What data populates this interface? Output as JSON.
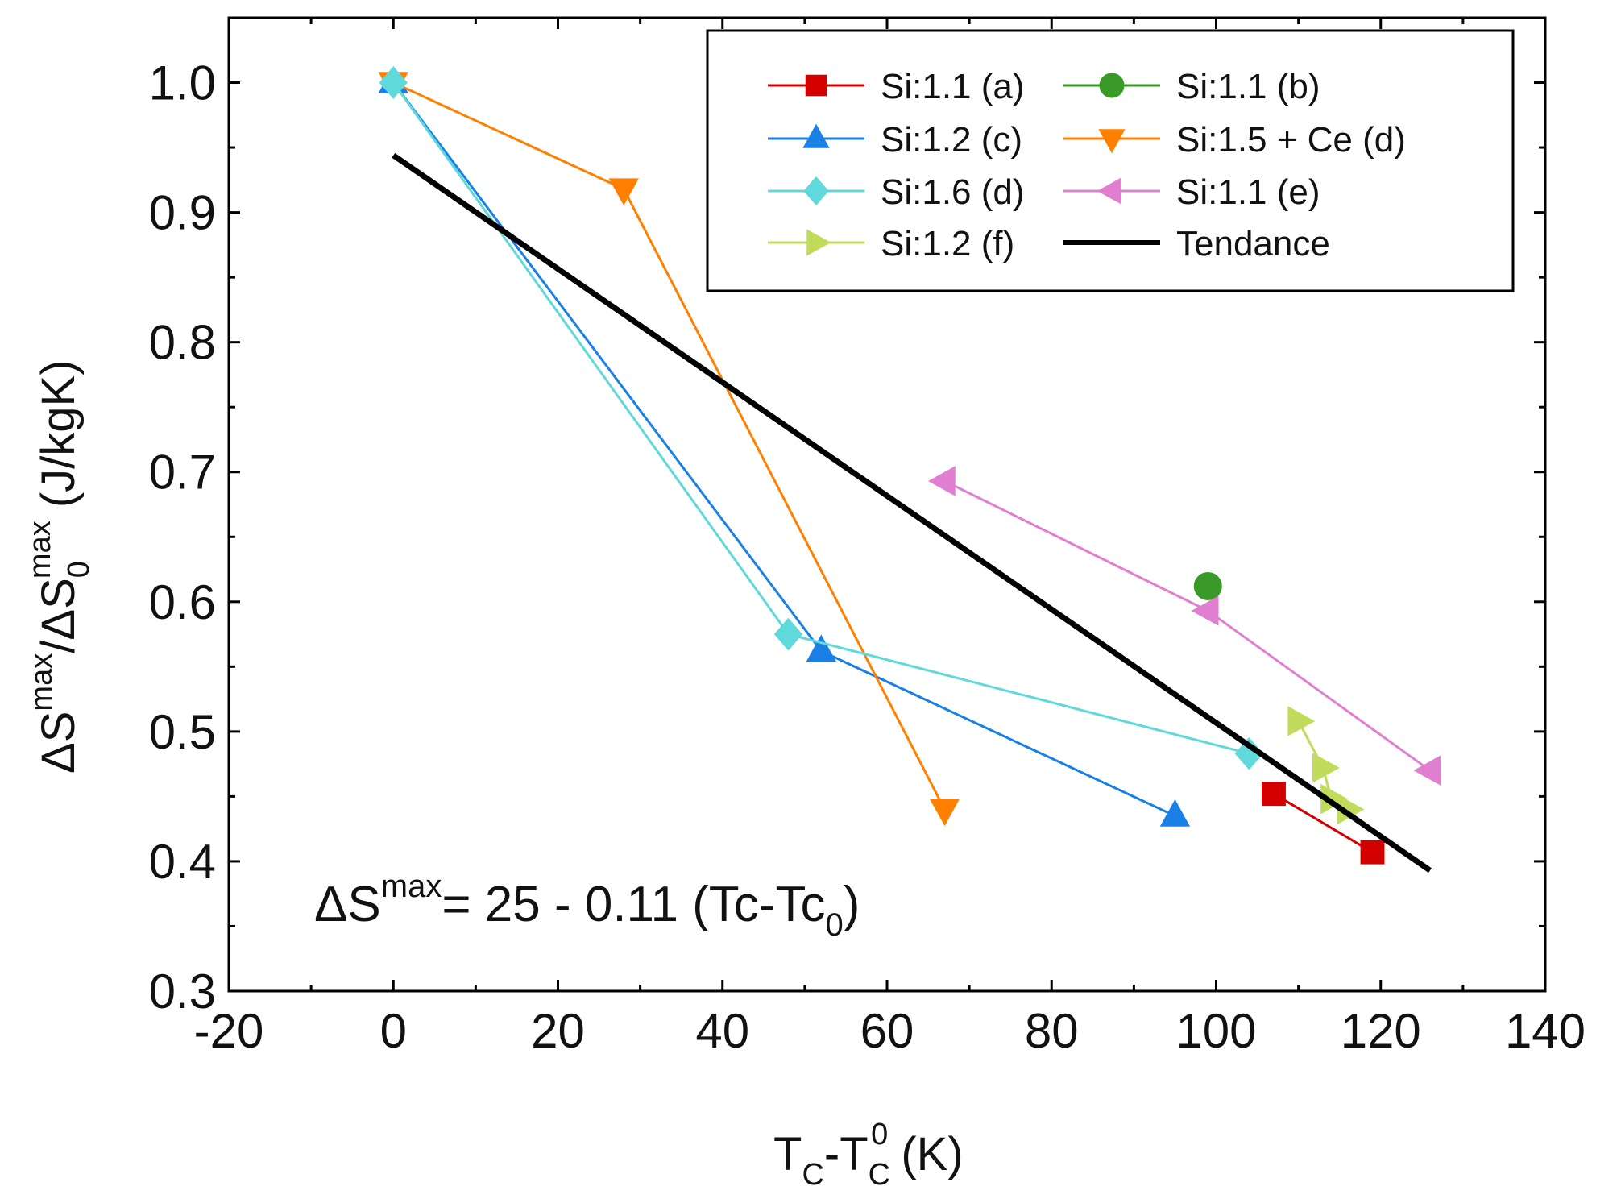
{
  "chart_data": {
    "type": "scatter",
    "xlabel": {
      "main": "T",
      "sub1": "C",
      "dash": "-T",
      "sub2": "C",
      "sup2": "0",
      "unit": " (K)"
    },
    "ylabel": {
      "delta1": "ΔS",
      "sup1": "max",
      "slash": "/ΔS",
      "sub2": "0",
      "sup2": "max",
      "unit": " (J/kgK)"
    },
    "xlim": [
      -20,
      140
    ],
    "ylim": [
      0.3,
      1.05
    ],
    "x_major_ticks": [
      -20,
      0,
      20,
      40,
      60,
      80,
      100,
      120,
      140
    ],
    "x_tick_labels": [
      "-20",
      "0",
      "20",
      "40",
      "60",
      "80",
      "100",
      "120",
      "140"
    ],
    "y_major_ticks": [
      0.3,
      0.4,
      0.5,
      0.6,
      0.7,
      0.8,
      0.9,
      1.0
    ],
    "y_tick_labels": [
      "0.3",
      "0.4",
      "0.5",
      "0.6",
      "0.7",
      "0.8",
      "0.9",
      "1.0"
    ],
    "grid": false,
    "legend_position": "top-right",
    "annotation": {
      "delta": "ΔS",
      "sup": "max",
      "text": "= 25 - 0.11 (Tc-Tc",
      "sub": "0",
      "close": ")"
    },
    "series": [
      {
        "name": "Si:1.1 (a)",
        "color": "#d40000",
        "marker": "square",
        "x": [
          107,
          119
        ],
        "y": [
          0.452,
          0.407
        ]
      },
      {
        "name": "Si:1.1 (b)",
        "color": "#3a9a28",
        "marker": "circle",
        "x": [
          99
        ],
        "y": [
          0.612
        ]
      },
      {
        "name": "Si:1.2 (c)",
        "color": "#1a80e6",
        "marker": "triangle-up",
        "x": [
          0,
          52,
          95
        ],
        "y": [
          1.0,
          0.562,
          0.435
        ]
      },
      {
        "name": "Si:1.5 + Ce (d)",
        "color": "#ff8000",
        "marker": "triangle-down",
        "x": [
          0,
          28,
          67
        ],
        "y": [
          1.0,
          0.918,
          0.44
        ]
      },
      {
        "name": "Si:1.6 (d)",
        "color": "#5fd9d9",
        "marker": "diamond",
        "x": [
          0,
          48,
          104
        ],
        "y": [
          1.0,
          0.575,
          0.483
        ]
      },
      {
        "name": "Si:1.1 (e)",
        "color": "#e07fd0",
        "marker": "triangle-left",
        "x": [
          67,
          99,
          126
        ],
        "y": [
          0.693,
          0.593,
          0.47
        ]
      },
      {
        "name": "Si:1.2 (f)",
        "color": "#c0dc5a",
        "marker": "triangle-right",
        "x": [
          110,
          113,
          114,
          116
        ],
        "y": [
          0.508,
          0.472,
          0.448,
          0.44
        ]
      },
      {
        "name": "Tendance",
        "color": "#000000",
        "marker": "none",
        "line_only": true,
        "x": [
          0,
          126
        ],
        "y": [
          0.944,
          0.393
        ]
      }
    ]
  }
}
